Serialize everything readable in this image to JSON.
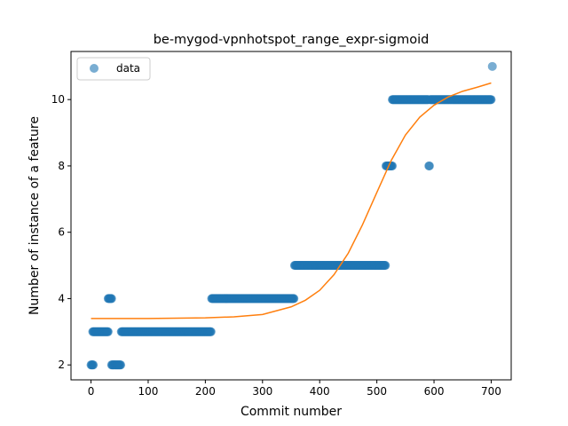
{
  "chart_data": {
    "type": "scatter",
    "title": "be-mygod-vpnhotspot_range_expr-sigmoid",
    "xlabel": "Commit number",
    "ylabel": "Number of instance of a feature",
    "xlim": [
      -35,
      735
    ],
    "ylim": [
      1.55,
      11.45
    ],
    "xticks": [
      0,
      100,
      200,
      300,
      400,
      500,
      600,
      700
    ],
    "yticks": [
      2,
      4,
      6,
      8,
      10
    ],
    "grid": false,
    "legend": {
      "position": "top-left",
      "entries": [
        "data"
      ]
    },
    "colors": {
      "data": "#1f77b4",
      "fit": "#ff7f0e"
    },
    "series": [
      {
        "name": "data",
        "kind": "scatter",
        "segments": [
          {
            "x_start": 0,
            "x_end": 4,
            "y": 2
          },
          {
            "x_start": 3,
            "x_end": 30,
            "y": 3
          },
          {
            "x_start": 30,
            "x_end": 36,
            "y": 4
          },
          {
            "x_start": 36,
            "x_end": 52,
            "y": 2
          },
          {
            "x_start": 53,
            "x_end": 210,
            "y": 3
          },
          {
            "x_start": 211,
            "x_end": 355,
            "y": 4
          },
          {
            "x_start": 356,
            "x_end": 515,
            "y": 5
          },
          {
            "x_start": 516,
            "x_end": 527,
            "y": 8
          },
          {
            "x_start": 527,
            "x_end": 590,
            "y": 10
          },
          {
            "x_start": 591,
            "x_end": 592,
            "y": 8
          },
          {
            "x_start": 593,
            "x_end": 700,
            "y": 10
          }
        ],
        "points": [
          {
            "x": 702,
            "y": 11
          }
        ]
      },
      {
        "kind": "line",
        "fit": "sigmoid",
        "points": [
          [
            0,
            3.4
          ],
          [
            100,
            3.4
          ],
          [
            150,
            3.41
          ],
          [
            200,
            3.42
          ],
          [
            250,
            3.45
          ],
          [
            300,
            3.52
          ],
          [
            350,
            3.75
          ],
          [
            375,
            3.95
          ],
          [
            400,
            4.25
          ],
          [
            425,
            4.72
          ],
          [
            450,
            5.37
          ],
          [
            475,
            6.23
          ],
          [
            500,
            7.2
          ],
          [
            525,
            8.16
          ],
          [
            550,
            8.93
          ],
          [
            575,
            9.47
          ],
          [
            600,
            9.83
          ],
          [
            625,
            10.08
          ],
          [
            650,
            10.25
          ],
          [
            675,
            10.37
          ],
          [
            700,
            10.5
          ]
        ]
      }
    ]
  }
}
